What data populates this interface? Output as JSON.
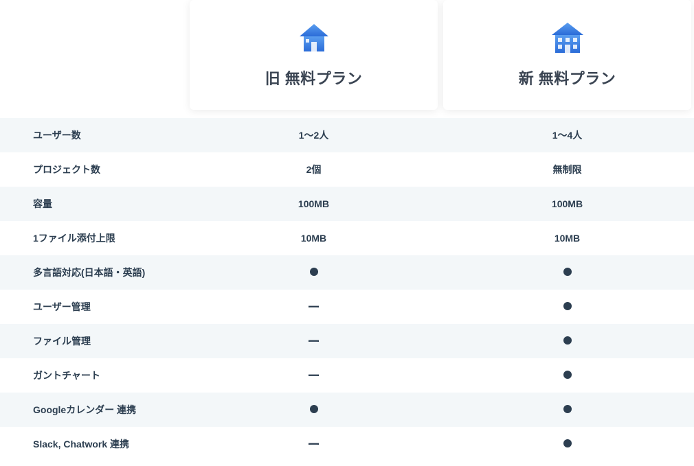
{
  "colors": {
    "icon_blue_light": "#5a9ef0",
    "icon_blue_dark": "#2b6cd8",
    "text_dark": "#2c3e50",
    "row_alt_bg": "#f3f7f9",
    "card_bg": "#ffffff",
    "card_shadow": "rgba(0,0,0,0.08)"
  },
  "plans": {
    "old": {
      "title": "旧 無料プラン",
      "icon": "house-small"
    },
    "new": {
      "title": "新 無料プラン",
      "icon": "house-building"
    }
  },
  "features": [
    {
      "label": "ユーザー数",
      "old": {
        "type": "text",
        "value": "1〜2人"
      },
      "new": {
        "type": "text",
        "value": "1〜4人"
      },
      "alt": true
    },
    {
      "label": "プロジェクト数",
      "old": {
        "type": "text",
        "value": "2個"
      },
      "new": {
        "type": "text",
        "value": "無制限"
      },
      "alt": false
    },
    {
      "label": "容量",
      "old": {
        "type": "text",
        "value": "100MB"
      },
      "new": {
        "type": "text",
        "value": "100MB"
      },
      "alt": true
    },
    {
      "label": "1ファイル添付上限",
      "old": {
        "type": "text",
        "value": "10MB"
      },
      "new": {
        "type": "text",
        "value": "10MB"
      },
      "alt": false
    },
    {
      "label": "多言語対応(日本語・英語)",
      "old": {
        "type": "dot"
      },
      "new": {
        "type": "dot"
      },
      "alt": true
    },
    {
      "label": "ユーザー管理",
      "old": {
        "type": "dash"
      },
      "new": {
        "type": "dot"
      },
      "alt": false
    },
    {
      "label": "ファイル管理",
      "old": {
        "type": "dash"
      },
      "new": {
        "type": "dot"
      },
      "alt": true
    },
    {
      "label": "ガントチャート",
      "old": {
        "type": "dash"
      },
      "new": {
        "type": "dot"
      },
      "alt": false
    },
    {
      "label": "Googleカレンダー 連携",
      "old": {
        "type": "dot"
      },
      "new": {
        "type": "dot"
      },
      "alt": true
    },
    {
      "label": "Slack, Chatwork 連携",
      "old": {
        "type": "dash"
      },
      "new": {
        "type": "dot"
      },
      "alt": false
    }
  ]
}
